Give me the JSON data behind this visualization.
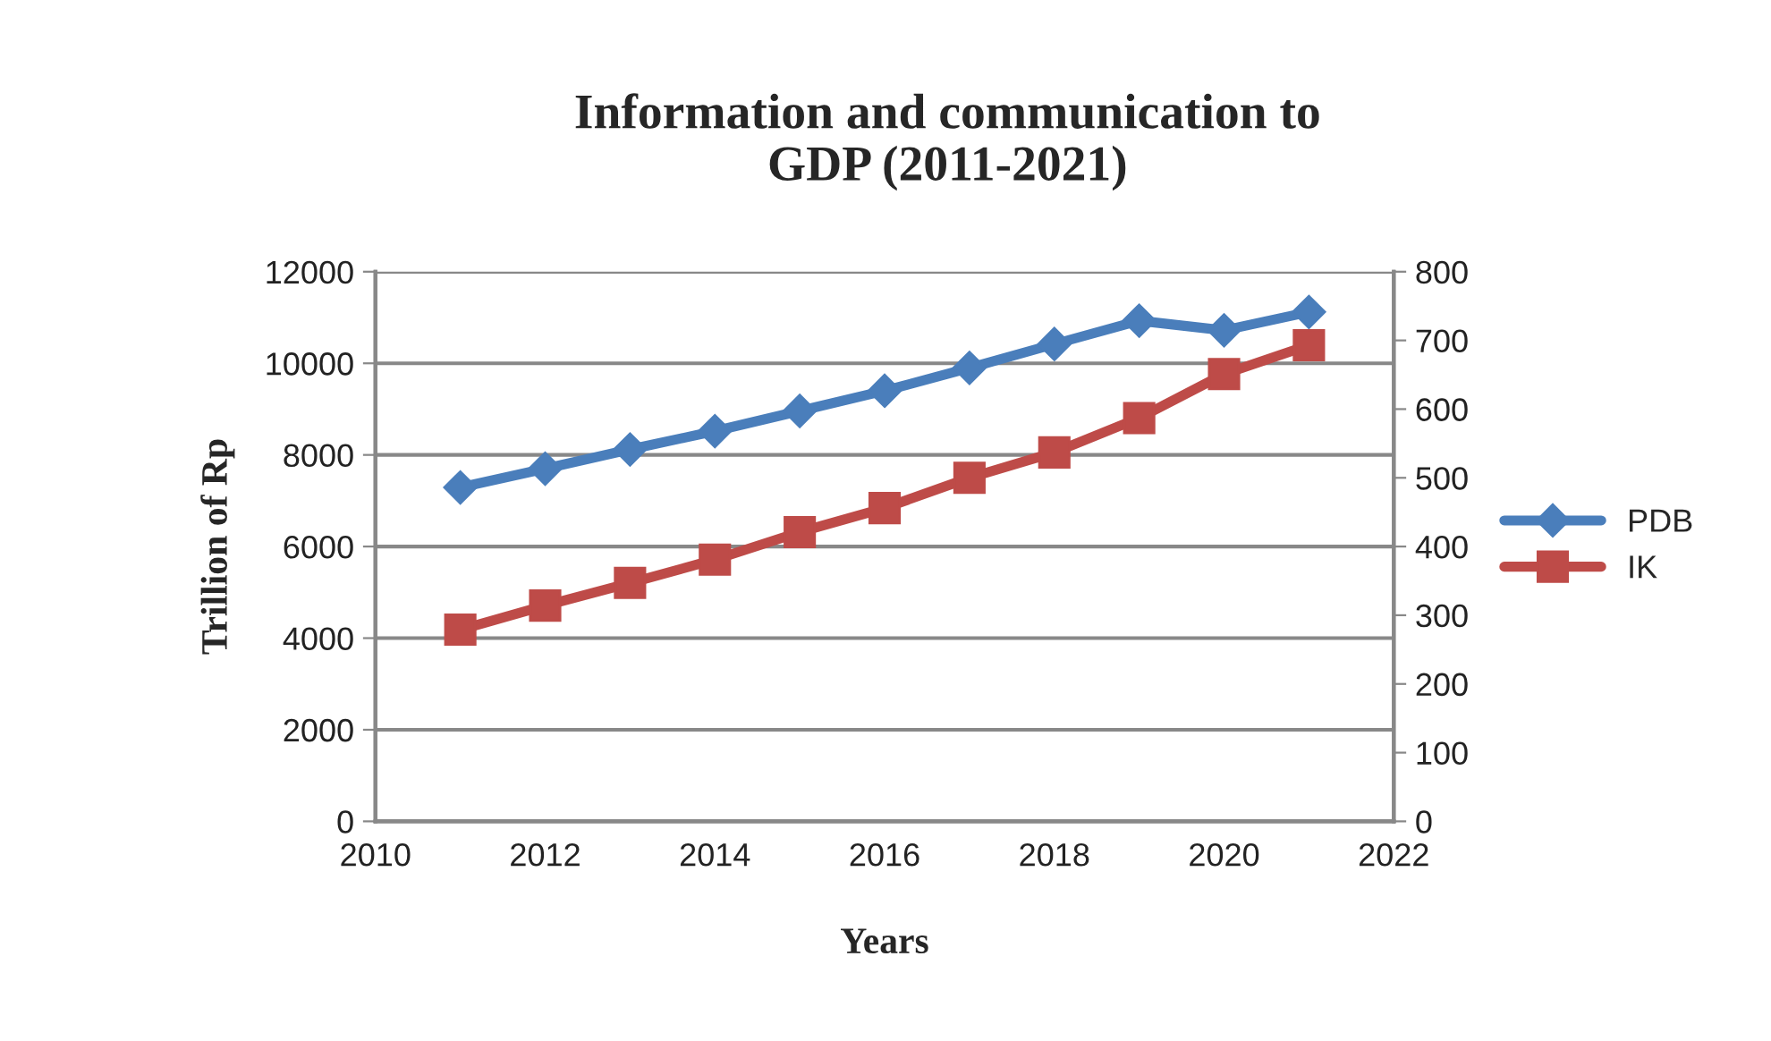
{
  "chart_data": {
    "type": "line",
    "title": "Information and communication to\nGDP (2011-2021)",
    "xlabel": "Years",
    "ylabel": "Trillion of Rp",
    "x": [
      2011,
      2012,
      2013,
      2014,
      2015,
      2016,
      2017,
      2018,
      2019,
      2020,
      2021
    ],
    "series": [
      {
        "name": "PDB",
        "color": "#4a7ebb",
        "marker": "diamond",
        "values": [
          7290,
          7700,
          8120,
          8520,
          8960,
          9400,
          9900,
          10420,
          10930,
          10720,
          11120
        ]
      },
      {
        "name": "IK",
        "color": "#be4b48",
        "marker": "square",
        "axis": "y2",
        "values": [
          279,
          314,
          347,
          381,
          421,
          456,
          500,
          537,
          587,
          651,
          693
        ]
      }
    ],
    "xlim": [
      2010,
      2022
    ],
    "xticks": [
      2010,
      2012,
      2014,
      2016,
      2018,
      2020,
      2022
    ],
    "ylim": [
      0,
      12000
    ],
    "yticks": [
      0,
      2000,
      4000,
      6000,
      8000,
      10000,
      12000
    ],
    "y2lim": [
      0,
      800
    ],
    "y2ticks": [
      0,
      100,
      200,
      300,
      400,
      500,
      600,
      700,
      800
    ],
    "grid": "y",
    "legend": "right",
    "line_style": "solid"
  }
}
